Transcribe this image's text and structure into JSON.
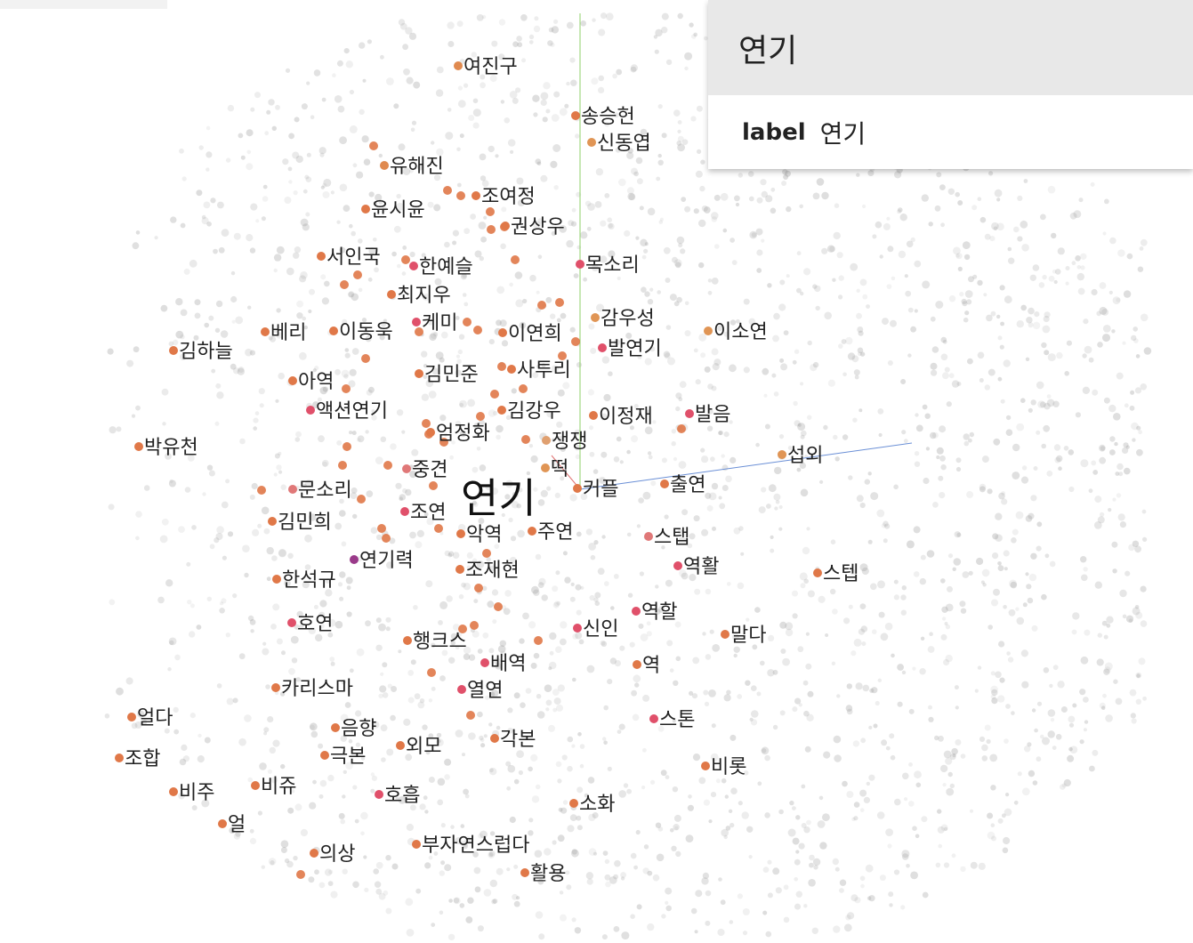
{
  "selected_point": {
    "title": "연기",
    "fields": [
      {
        "key": "label",
        "value": "연기"
      }
    ]
  },
  "projection": {
    "center": {
      "label": "연기"
    },
    "neighbors": [
      {
        "label": "여진구",
        "color": "#e08a4f"
      },
      {
        "label": "송승헌",
        "color": "#e07848"
      },
      {
        "label": "신동엽",
        "color": "#e09555"
      },
      {
        "label": "유해진",
        "color": "#e08a4f"
      },
      {
        "label": "조여정",
        "color": "#e07848"
      },
      {
        "label": "윤시윤",
        "color": "#e07848"
      },
      {
        "label": "권상우",
        "color": "#e07848"
      },
      {
        "label": "서인국",
        "color": "#e07848"
      },
      {
        "label": "한예슬",
        "color": "#e0506a"
      },
      {
        "label": "목소리",
        "color": "#e0506a"
      },
      {
        "label": "최지우",
        "color": "#e07848"
      },
      {
        "label": "케미",
        "color": "#e0506a"
      },
      {
        "label": "베리",
        "color": "#e07848"
      },
      {
        "label": "이동욱",
        "color": "#e07848"
      },
      {
        "label": "이연희",
        "color": "#e07848"
      },
      {
        "label": "감우성",
        "color": "#e09555"
      },
      {
        "label": "이소연",
        "color": "#e09555"
      },
      {
        "label": "김하늘",
        "color": "#e07848"
      },
      {
        "label": "발연기",
        "color": "#e0506a"
      },
      {
        "label": "아역",
        "color": "#e07848"
      },
      {
        "label": "김민준",
        "color": "#e07848"
      },
      {
        "label": "사투리",
        "color": "#e07848"
      },
      {
        "label": "액션연기",
        "color": "#e0506a"
      },
      {
        "label": "김강우",
        "color": "#e07848"
      },
      {
        "label": "이정재",
        "color": "#e07848"
      },
      {
        "label": "발음",
        "color": "#e0506a"
      },
      {
        "label": "엄정화",
        "color": "#e07848"
      },
      {
        "label": "쟁쟁",
        "color": "#e0a070"
      },
      {
        "label": "박유천",
        "color": "#e07848"
      },
      {
        "label": "섭외",
        "color": "#e09555"
      },
      {
        "label": "중견",
        "color": "#e07878"
      },
      {
        "label": "떡",
        "color": "#e09555"
      },
      {
        "label": "문소리",
        "color": "#e07878"
      },
      {
        "label": "커플",
        "color": "#e07848"
      },
      {
        "label": "출연",
        "color": "#e07848"
      },
      {
        "label": "조연",
        "color": "#e0506a"
      },
      {
        "label": "김민희",
        "color": "#e07848"
      },
      {
        "label": "악역",
        "color": "#e07848"
      },
      {
        "label": "주연",
        "color": "#e07848"
      },
      {
        "label": "스탭",
        "color": "#e07878"
      },
      {
        "label": "연기력",
        "color": "#9a3a8a"
      },
      {
        "label": "한석규",
        "color": "#e07848"
      },
      {
        "label": "조재현",
        "color": "#e07848"
      },
      {
        "label": "역활",
        "color": "#e0506a"
      },
      {
        "label": "스텝",
        "color": "#e07848"
      },
      {
        "label": "호연",
        "color": "#e0506a"
      },
      {
        "label": "역할",
        "color": "#e0506a"
      },
      {
        "label": "신인",
        "color": "#e0506a"
      },
      {
        "label": "말다",
        "color": "#e07848"
      },
      {
        "label": "행크스",
        "color": "#e07848"
      },
      {
        "label": "배역",
        "color": "#e0506a"
      },
      {
        "label": "역",
        "color": "#e07848"
      },
      {
        "label": "카리스마",
        "color": "#e07848"
      },
      {
        "label": "열연",
        "color": "#e0506a"
      },
      {
        "label": "얼다",
        "color": "#e07848"
      },
      {
        "label": "스톤",
        "color": "#e0506a"
      },
      {
        "label": "음향",
        "color": "#e07848"
      },
      {
        "label": "각본",
        "color": "#e07848"
      },
      {
        "label": "외모",
        "color": "#e07848"
      },
      {
        "label": "극본",
        "color": "#e07848"
      },
      {
        "label": "조합",
        "color": "#e07848"
      },
      {
        "label": "비롯",
        "color": "#e07848"
      },
      {
        "label": "비주",
        "color": "#e07848"
      },
      {
        "label": "비쥬",
        "color": "#e07848"
      },
      {
        "label": "호흡",
        "color": "#e0506a"
      },
      {
        "label": "소화",
        "color": "#e07848"
      },
      {
        "label": "얼",
        "color": "#e07848"
      },
      {
        "label": "부자연스럽다",
        "color": "#e07848"
      },
      {
        "label": "의상",
        "color": "#e07848"
      },
      {
        "label": "활용",
        "color": "#e07848"
      }
    ]
  }
}
